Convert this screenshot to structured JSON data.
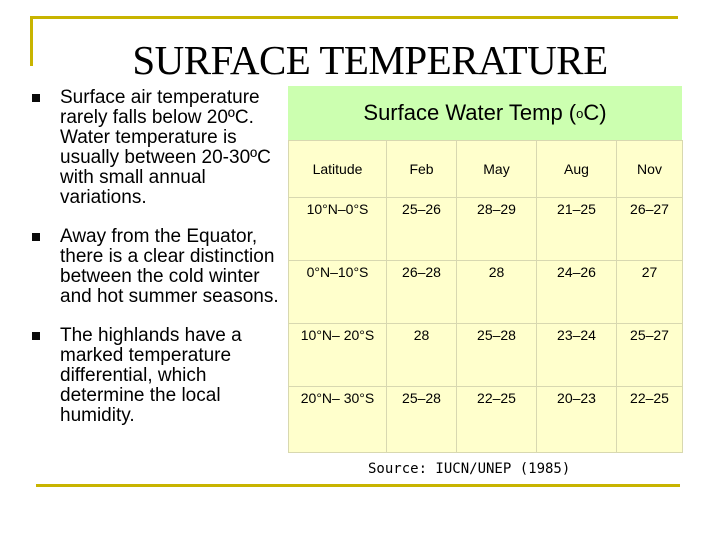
{
  "title": "SURFACE TEMPERATURE",
  "bullets": [
    "Surface air temperature rarely falls below 20ºC. Water temperature is usually between 20-30ºC with small annual variations.",
    "Away from the Equator, there is a clear distinction between the cold winter and hot summer seasons.",
    "The highlands have a marked temperature differential, which determine the local humidity."
  ],
  "table": {
    "title_prefix": "Surface Water Temp (",
    "title_sup": "o",
    "title_suffix": "C)",
    "headers": [
      "Latitude",
      "Feb",
      "May",
      "Aug",
      "Nov"
    ],
    "rows": [
      [
        "10°N–0°S",
        "25–26",
        "28–29",
        "21–25",
        "26–27"
      ],
      [
        "0°N–10°S",
        "26–28",
        "28",
        "24–26",
        "27"
      ],
      [
        "10°N– 20°S",
        "28",
        "25–28",
        "23–24",
        "25–27"
      ],
      [
        "20°N– 30°S",
        "25–28",
        "22–25",
        "20–23",
        "22–25"
      ]
    ]
  },
  "source": "Source: IUCN/UNEP (1985)",
  "colors": {
    "frame": "#c8b400",
    "table_header_bg": "#ccffb0",
    "table_body_bg": "#ffffcc"
  }
}
